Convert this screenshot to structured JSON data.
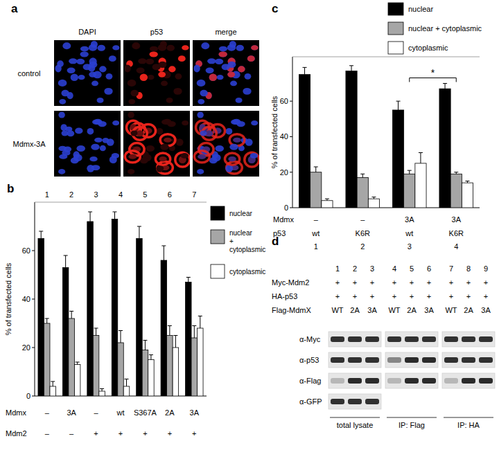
{
  "panel_labels": [
    "a",
    "b",
    "c",
    "d"
  ],
  "image_panel": {
    "columns": [
      "DAPI",
      "p53",
      "merge"
    ],
    "rows": [
      "control",
      "Mdmx-3A"
    ]
  },
  "chart_data": [
    {
      "type": "bar",
      "categories": [
        "1",
        "2",
        "3",
        "4",
        "5",
        "6",
        "7"
      ],
      "y_label": "% of transfected cells",
      "ylim": [
        0,
        80
      ],
      "yticks": [
        0,
        20,
        40,
        60
      ],
      "legend": "right",
      "series": [
        {
          "name": "nuclear",
          "color": "#000000",
          "values": [
            65,
            53,
            72,
            73,
            65,
            56,
            47
          ],
          "errors": [
            3,
            5,
            4,
            3,
            5,
            6,
            2
          ]
        },
        {
          "name": "nuclear + cytoplasmic",
          "color": "#a6a6a6",
          "values": [
            30,
            32,
            25,
            22,
            19,
            25,
            24
          ],
          "errors": [
            2,
            3,
            3,
            5,
            4,
            4,
            5
          ]
        },
        {
          "name": "cytoplasmic",
          "color": "#ffffff",
          "values": [
            4,
            13,
            2,
            4,
            15,
            20,
            28
          ],
          "errors": [
            2,
            1,
            1,
            3,
            2,
            5,
            5
          ]
        }
      ],
      "conditions": [
        {
          "label": "Mdmx",
          "values": [
            "–",
            "3A",
            "–",
            "wt",
            "S367A",
            "2A",
            "3A"
          ]
        },
        {
          "label": "Mdm2",
          "values": [
            "–",
            "–",
            "+",
            "+",
            "+",
            "+",
            "+"
          ]
        }
      ]
    },
    {
      "type": "bar",
      "categories": [
        "1",
        "2",
        "3",
        "4"
      ],
      "y_label": "% of transfected cells",
      "ylim": [
        0,
        85
      ],
      "yticks": [
        0,
        20,
        40,
        60
      ],
      "legend": "top right",
      "series": [
        {
          "name": "nuclear",
          "color": "#000000",
          "values": [
            75,
            77,
            55,
            67
          ],
          "errors": [
            4,
            3,
            5,
            3
          ]
        },
        {
          "name": "nuclear + cytoplasmic",
          "color": "#a6a6a6",
          "values": [
            20,
            17,
            19,
            19
          ],
          "errors": [
            3,
            2,
            2,
            1
          ]
        },
        {
          "name": "cytoplasmic",
          "color": "#ffffff",
          "values": [
            4,
            5,
            25,
            14
          ],
          "errors": [
            1,
            1,
            6,
            1
          ]
        }
      ],
      "conditions": [
        {
          "label": "Mdmx",
          "values": [
            "–",
            "–",
            "3A",
            "3A"
          ]
        },
        {
          "label": "p53",
          "values": [
            "wt",
            "K6R",
            "wt",
            "K6R"
          ]
        }
      ],
      "annotations": [
        {
          "text": "*",
          "categories": [
            2,
            3
          ]
        }
      ]
    }
  ],
  "blot_panel": {
    "lanes": [
      "1",
      "2",
      "3",
      "4",
      "5",
      "6",
      "7",
      "8",
      "9"
    ],
    "conditions": [
      {
        "label": "Myc-Mdm2",
        "values": [
          "+",
          "+",
          "+",
          "+",
          "+",
          "+",
          "+",
          "+",
          "+"
        ]
      },
      {
        "label": "HA-p53",
        "values": [
          "+",
          "+",
          "+",
          "+",
          "+",
          "+",
          "+",
          "+",
          "+"
        ]
      },
      {
        "label": "Flag-MdmX",
        "values": [
          "WT",
          "2A",
          "3A",
          "WT",
          "2A",
          "3A",
          "WT",
          "2A",
          "3A"
        ]
      }
    ],
    "antibodies": [
      {
        "label": "α-Myc",
        "groups": [
          0,
          1,
          2
        ]
      },
      {
        "label": "α-p53",
        "groups": [
          0,
          1,
          2
        ]
      },
      {
        "label": "α-Flag",
        "groups": [
          0,
          1,
          2
        ]
      },
      {
        "label": "α-GFP",
        "groups": [
          0
        ]
      }
    ],
    "groups": [
      {
        "label": "total lysate"
      },
      {
        "label": "IP: Flag"
      },
      {
        "label": "IP: HA"
      }
    ]
  }
}
